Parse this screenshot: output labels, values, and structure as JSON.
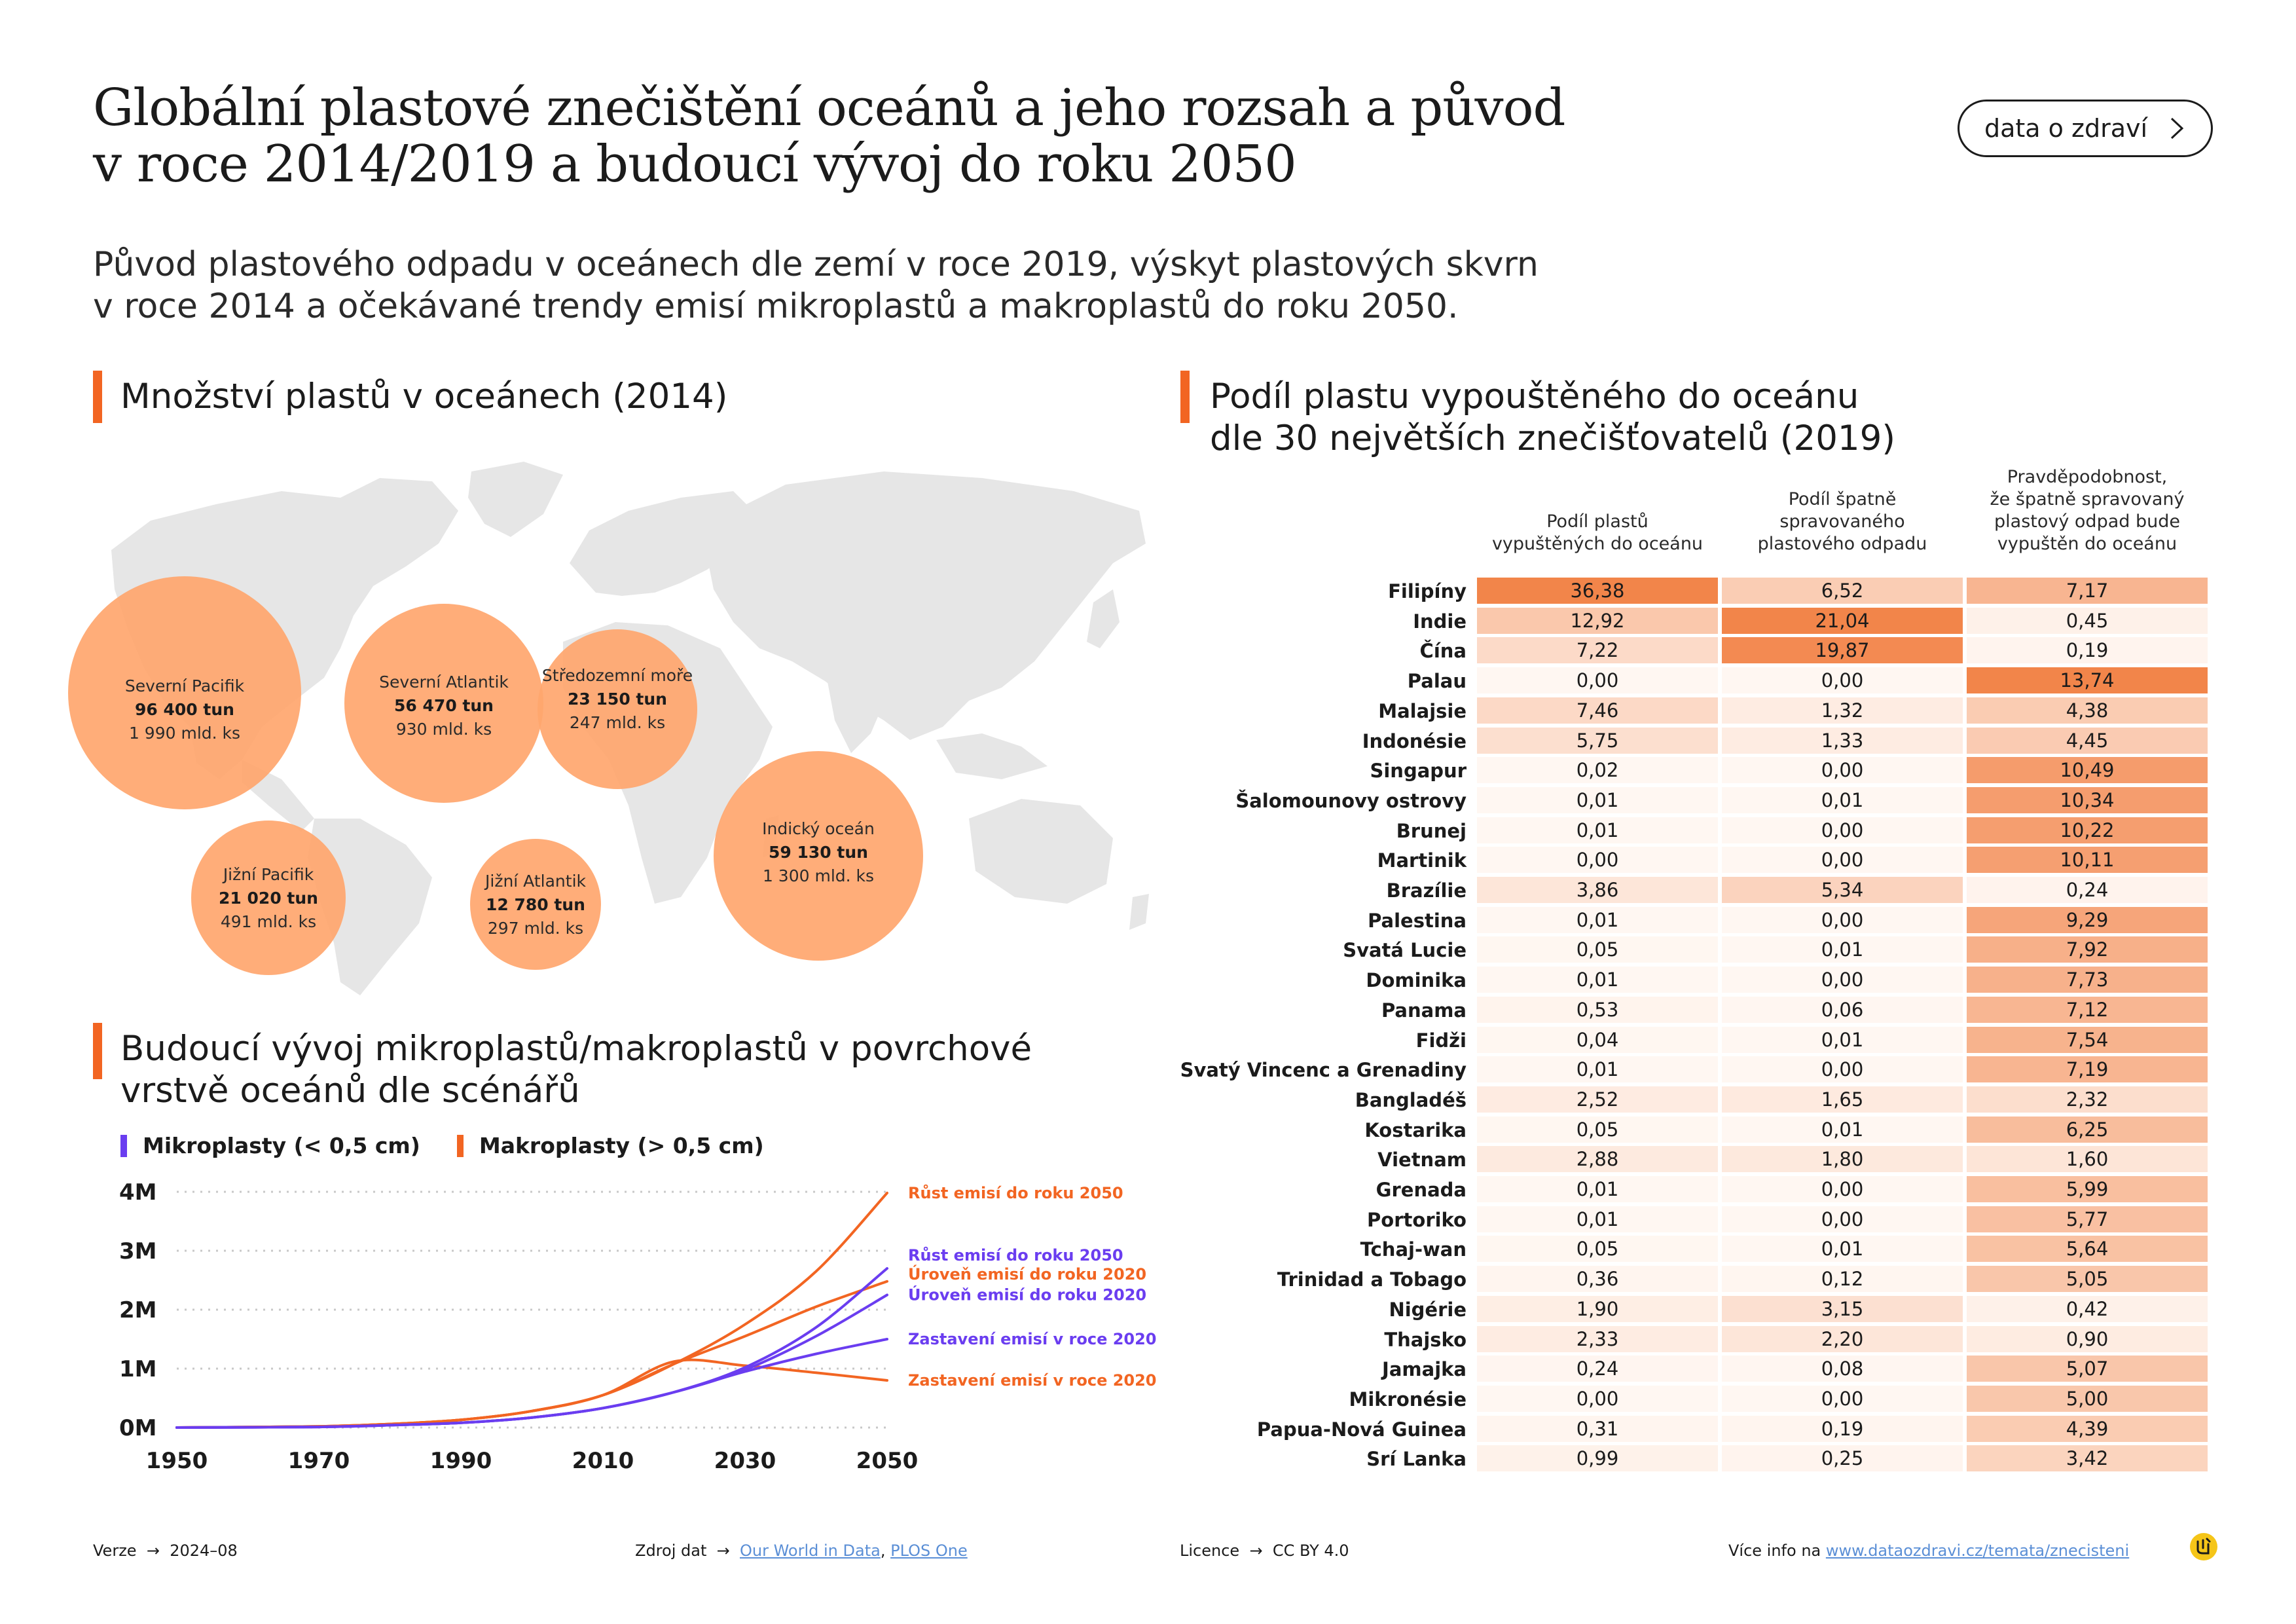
{
  "header": {
    "title_line1": "Globální plastové znečištění oceánů a jeho rozsah a původ",
    "title_line2": "v roce 2014/2019 a budoucí vývoj do roku 2050",
    "subtitle_line1": "Původ plastového odpadu v oceánech dle zemí v roce 2019, výskyt plastových skvrn",
    "subtitle_line2": "v roce 2014 a očekávané trendy emisí mikroplastů a makroplastů do roku 2050.",
    "button_label": "data o zdraví"
  },
  "map_section": {
    "heading": "Množství plastů v oceánech (2014)",
    "bubbles": [
      {
        "name": "Severní Pacifik",
        "tons": "96 400 tun",
        "count": "1 990 mld. ks",
        "tons_value": 96400
      },
      {
        "name": "Severní Atlantik",
        "tons": "56 470 tun",
        "count": "930 mld. ks",
        "tons_value": 56470
      },
      {
        "name": "Středozemní moře",
        "tons": "23 150 tun",
        "count": "247 mld. ks",
        "tons_value": 23150
      },
      {
        "name": "Indický oceán",
        "tons": "59 130 tun",
        "count": "1 300 mld. ks",
        "tons_value": 59130
      },
      {
        "name": "Jižní Pacifik",
        "tons": "21 020 tun",
        "count": "491 mld. ks",
        "tons_value": 21020
      },
      {
        "name": "Jižní Atlantik",
        "tons": "12 780 tun",
        "count": "297 mld. ks",
        "tons_value": 12780
      }
    ]
  },
  "line_section": {
    "heading_line1": "Budoucí vývoj mikroplastů/makroplastů v povrchové",
    "heading_line2": "vrstvě oceánů dle scénářů",
    "legend": [
      {
        "label": "Mikroplasty (< 0,5 cm)",
        "color": "#6a3df0"
      },
      {
        "label": "Makroplasty (> 0,5 cm)",
        "color": "#f26522"
      }
    ]
  },
  "table_section": {
    "heading_line1": "Podíl plastu vypouštěného do oceánu",
    "heading_line2": "dle 30 největších znečišťovatelů (2019)",
    "col1": [
      "Podíl plastů",
      "vypuštěných do oceánu"
    ],
    "col2": [
      "Podíl špatně",
      "spravovaného",
      "plastového odpadu"
    ],
    "col3": [
      "Pravděpodobnost,",
      "že špatně spravovaný",
      "plastový odpad bude",
      "vypuštěn do oceánu"
    ],
    "rows": [
      {
        "country": "Filipíny",
        "a": "36,38",
        "b": "6,52",
        "c": "7,17"
      },
      {
        "country": "Indie",
        "a": "12,92",
        "b": "21,04",
        "c": "0,45"
      },
      {
        "country": "Čína",
        "a": "7,22",
        "b": "19,87",
        "c": "0,19"
      },
      {
        "country": "Palau",
        "a": "0,00",
        "b": "0,00",
        "c": "13,74"
      },
      {
        "country": "Malajsie",
        "a": "7,46",
        "b": "1,32",
        "c": "4,38"
      },
      {
        "country": "Indonésie",
        "a": "5,75",
        "b": "1,33",
        "c": "4,45"
      },
      {
        "country": "Singapur",
        "a": "0,02",
        "b": "0,00",
        "c": "10,49"
      },
      {
        "country": "Šalomounovy ostrovy",
        "a": "0,01",
        "b": "0,01",
        "c": "10,34"
      },
      {
        "country": "Brunej",
        "a": "0,01",
        "b": "0,00",
        "c": "10,22"
      },
      {
        "country": "Martinik",
        "a": "0,00",
        "b": "0,00",
        "c": "10,11"
      },
      {
        "country": "Brazílie",
        "a": "3,86",
        "b": "5,34",
        "c": "0,24"
      },
      {
        "country": "Palestina",
        "a": "0,01",
        "b": "0,00",
        "c": "9,29"
      },
      {
        "country": "Svatá Lucie",
        "a": "0,05",
        "b": "0,01",
        "c": "7,92"
      },
      {
        "country": "Dominika",
        "a": "0,01",
        "b": "0,00",
        "c": "7,73"
      },
      {
        "country": "Panama",
        "a": "0,53",
        "b": "0,06",
        "c": "7,12"
      },
      {
        "country": "Fidži",
        "a": "0,04",
        "b": "0,01",
        "c": "7,54"
      },
      {
        "country": "Svatý Vincenc a Grenadiny",
        "a": "0,01",
        "b": "0,00",
        "c": "7,19"
      },
      {
        "country": "Bangladéš",
        "a": "2,52",
        "b": "1,65",
        "c": "2,32"
      },
      {
        "country": "Kostarika",
        "a": "0,05",
        "b": "0,01",
        "c": "6,25"
      },
      {
        "country": "Vietnam",
        "a": "2,88",
        "b": "1,80",
        "c": "1,60"
      },
      {
        "country": "Grenada",
        "a": "0,01",
        "b": "0,00",
        "c": "5,99"
      },
      {
        "country": "Portoriko",
        "a": "0,01",
        "b": "0,00",
        "c": "5,77"
      },
      {
        "country": "Tchaj-wan",
        "a": "0,05",
        "b": "0,01",
        "c": "5,64"
      },
      {
        "country": "Trinidad a Tobago",
        "a": "0,36",
        "b": "0,12",
        "c": "5,05"
      },
      {
        "country": "Nigérie",
        "a": "1,90",
        "b": "3,15",
        "c": "0,42"
      },
      {
        "country": "Thajsko",
        "a": "2,33",
        "b": "2,20",
        "c": "0,90"
      },
      {
        "country": "Jamajka",
        "a": "0,24",
        "b": "0,08",
        "c": "5,07"
      },
      {
        "country": "Mikronésie",
        "a": "0,00",
        "b": "0,00",
        "c": "5,00"
      },
      {
        "country": "Papua-Nová Guinea",
        "a": "0,31",
        "b": "0,19",
        "c": "4,39"
      },
      {
        "country": "Srí Lanka",
        "a": "0,99",
        "b": "0,25",
        "c": "3,42"
      }
    ]
  },
  "footer": {
    "version_label": "Verze",
    "version": "2024–08",
    "source_label": "Zdroj dat",
    "source_link1": "Our World in Data",
    "source_sep": ",",
    "source_link2": "PLOS One",
    "license_label": "Licence",
    "license": "CC BY 4.0",
    "more_label": "Více info na",
    "more_link": "www.dataozdravi.cz/temata/znecisteni",
    "arrow": "→"
  },
  "colors": {
    "accent": "#f26522",
    "micro": "#6a3df0",
    "bubble": "#ffa66e",
    "map": "#e6e6e6"
  },
  "chart_data": {
    "type": "line",
    "title": "Budoucí vývoj mikroplastů/makroplastů v povrchové vrstvě oceánů dle scénářů",
    "x_ticks": [
      1950,
      1970,
      1990,
      2010,
      2030,
      2050
    ],
    "y_ticks": [
      0,
      1,
      2,
      3,
      4
    ],
    "y_tick_labels": [
      "0M",
      "1M",
      "2M",
      "3M",
      "4M"
    ],
    "xlim": [
      1950,
      2050
    ],
    "ylim": [
      0,
      4
    ],
    "grid": "horizontal dotted",
    "series": [
      {
        "name": "Růst emisí do roku 2050",
        "kind": "Makroplasty",
        "color": "#f26522",
        "x": [
          1950,
          1970,
          1980,
          1990,
          2000,
          2010,
          2020,
          2030,
          2040,
          2050
        ],
        "y": [
          0,
          0.02,
          0.06,
          0.13,
          0.28,
          0.55,
          1.08,
          1.75,
          2.65,
          3.98
        ]
      },
      {
        "name": "Úroveň emisí do roku 2020",
        "kind": "Makroplasty",
        "color": "#f26522",
        "x": [
          1950,
          1970,
          1980,
          1990,
          2000,
          2010,
          2020,
          2030,
          2040,
          2050
        ],
        "y": [
          0,
          0.02,
          0.06,
          0.13,
          0.28,
          0.55,
          1.08,
          1.55,
          2.05,
          2.48
        ]
      },
      {
        "name": "Zastavení emisí v roce 2020",
        "kind": "Makroplasty",
        "color": "#f26522",
        "x": [
          1950,
          1970,
          1980,
          1990,
          2000,
          2010,
          2020,
          2030,
          2040,
          2050
        ],
        "y": [
          0,
          0.02,
          0.06,
          0.13,
          0.28,
          0.55,
          1.12,
          1.05,
          0.93,
          0.8
        ]
      },
      {
        "name": "Růst emisí do roku 2050",
        "kind": "Mikroplasty",
        "color": "#6a3df0",
        "x": [
          1950,
          1970,
          1980,
          1990,
          2000,
          2010,
          2020,
          2030,
          2040,
          2050
        ],
        "y": [
          0,
          0.01,
          0.04,
          0.08,
          0.17,
          0.33,
          0.6,
          1.02,
          1.7,
          2.7
        ]
      },
      {
        "name": "Úroveň emisí do roku 2020",
        "kind": "Mikroplasty",
        "color": "#6a3df0",
        "x": [
          1950,
          1970,
          1980,
          1990,
          2000,
          2010,
          2020,
          2030,
          2040,
          2050
        ],
        "y": [
          0,
          0.01,
          0.04,
          0.08,
          0.17,
          0.33,
          0.6,
          0.98,
          1.55,
          2.25
        ]
      },
      {
        "name": "Zastavení emisí v roce 2020",
        "kind": "Mikroplasty",
        "color": "#6a3df0",
        "x": [
          1950,
          1970,
          1980,
          1990,
          2000,
          2010,
          2020,
          2030,
          2040,
          2050
        ],
        "y": [
          0,
          0.01,
          0.04,
          0.08,
          0.17,
          0.33,
          0.6,
          0.95,
          1.25,
          1.5
        ]
      }
    ]
  }
}
